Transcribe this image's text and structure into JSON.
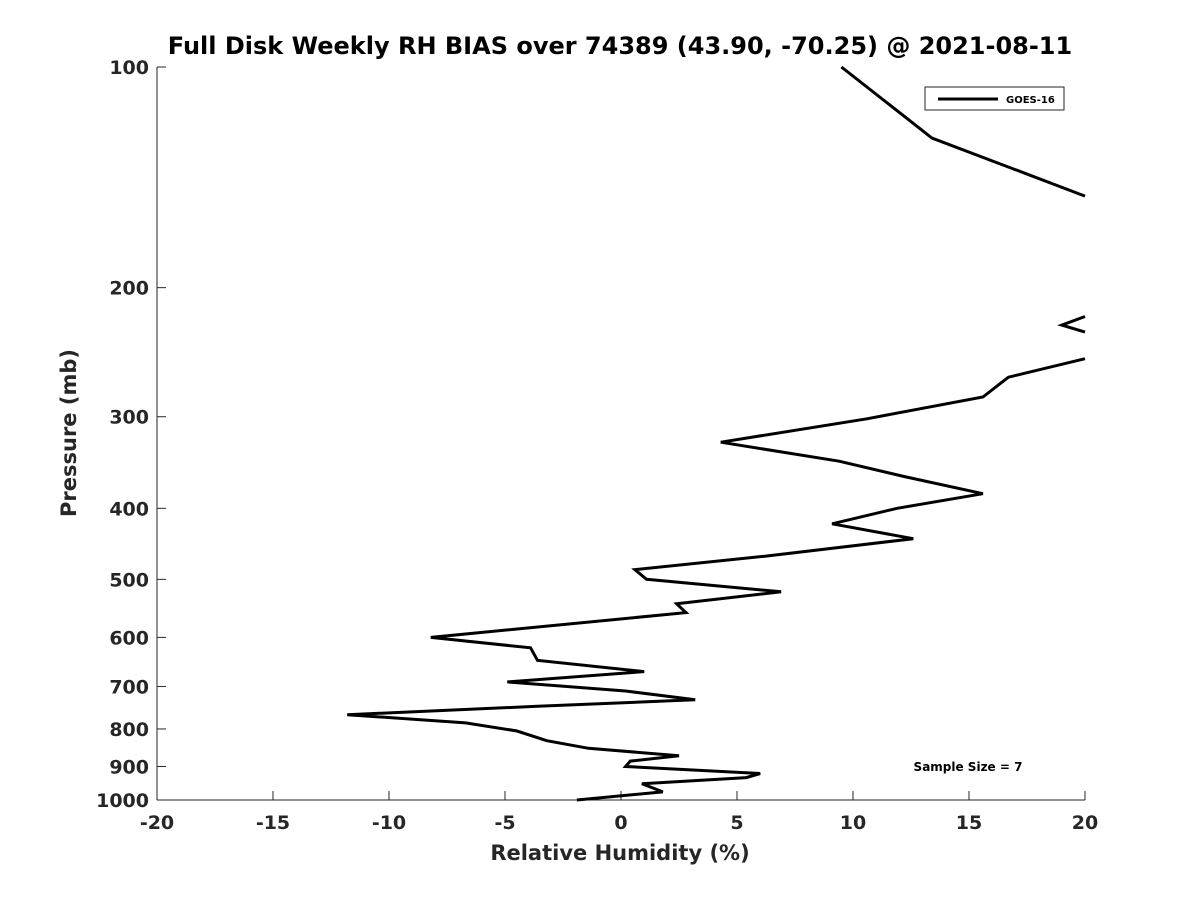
{
  "chart_data": {
    "type": "line",
    "title": "Full Disk Weekly RH BIAS over 74389 (43.90, -70.25) @ 2021-08-11",
    "xlabel": "Relative Humidity (%)",
    "ylabel": "Pressure (mb)",
    "xlim": [
      -20,
      20
    ],
    "ylim": [
      1000,
      100
    ],
    "yscale": "log",
    "xticks": [
      -20,
      -15,
      -10,
      -5,
      0,
      5,
      10,
      15,
      20
    ],
    "yticks": [
      100,
      200,
      300,
      400,
      500,
      600,
      700,
      800,
      900,
      1000
    ],
    "legend": {
      "placement": "top-right",
      "entries": [
        "GOES-16"
      ]
    },
    "annotation": "Sample Size = 7",
    "series": [
      {
        "name": "GOES-16",
        "color": "#000000",
        "segments": [
          [
            {
              "x": 9.5,
              "p": 100
            },
            {
              "x": 13.4,
              "p": 125
            },
            {
              "x": 20.0,
              "p": 150
            }
          ],
          [
            {
              "x": 20.0,
              "p": 219
            },
            {
              "x": 19.0,
              "p": 225
            },
            {
              "x": 20.0,
              "p": 230
            }
          ],
          [
            {
              "x": 20.0,
              "p": 250
            },
            {
              "x": 16.7,
              "p": 265
            },
            {
              "x": 15.6,
              "p": 282
            },
            {
              "x": 10.6,
              "p": 302
            },
            {
              "x": 4.3,
              "p": 325
            },
            {
              "x": 9.4,
              "p": 345
            },
            {
              "x": 12.2,
              "p": 362
            },
            {
              "x": 15.6,
              "p": 382
            },
            {
              "x": 11.9,
              "p": 400
            },
            {
              "x": 9.1,
              "p": 420
            },
            {
              "x": 12.6,
              "p": 440
            },
            {
              "x": 6.2,
              "p": 465
            },
            {
              "x": 0.6,
              "p": 485
            },
            {
              "x": 1.1,
              "p": 500
            },
            {
              "x": 6.9,
              "p": 520
            },
            {
              "x": 2.4,
              "p": 540
            },
            {
              "x": 2.8,
              "p": 555
            },
            {
              "x": -8.2,
              "p": 600
            },
            {
              "x": -3.9,
              "p": 620
            },
            {
              "x": -3.6,
              "p": 645
            },
            {
              "x": 1.0,
              "p": 668
            },
            {
              "x": -4.9,
              "p": 690
            },
            {
              "x": 0.2,
              "p": 710
            },
            {
              "x": 3.2,
              "p": 730
            },
            {
              "x": -3.6,
              "p": 745
            },
            {
              "x": -11.8,
              "p": 765
            },
            {
              "x": -6.7,
              "p": 785
            },
            {
              "x": -4.5,
              "p": 805
            },
            {
              "x": -3.2,
              "p": 830
            },
            {
              "x": -1.4,
              "p": 850
            },
            {
              "x": 2.5,
              "p": 870
            },
            {
              "x": 0.4,
              "p": 885
            },
            {
              "x": 0.2,
              "p": 900
            },
            {
              "x": 6.0,
              "p": 920
            },
            {
              "x": 5.4,
              "p": 932
            },
            {
              "x": 0.9,
              "p": 950
            },
            {
              "x": 1.8,
              "p": 975
            },
            {
              "x": -1.9,
              "p": 1000
            }
          ]
        ]
      }
    ]
  }
}
